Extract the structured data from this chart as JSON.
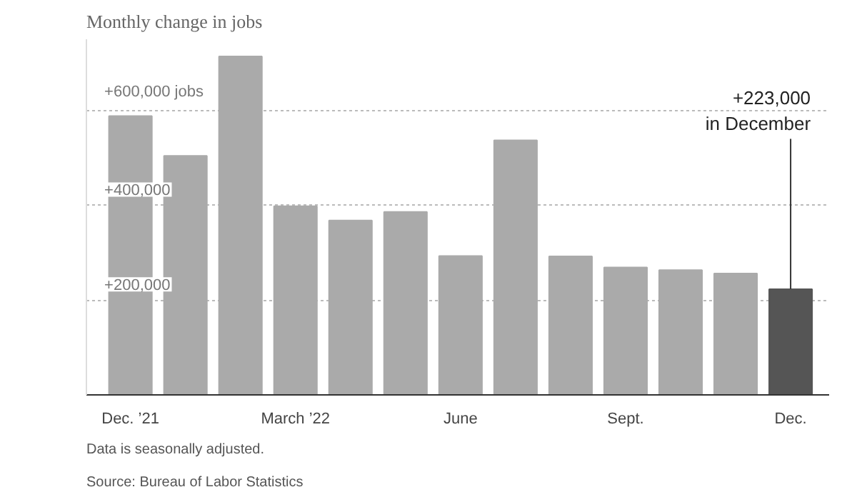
{
  "chart_data": {
    "type": "bar",
    "title": "Monthly change in jobs",
    "categories": [
      "Dec. ’21",
      null,
      null,
      "March ’22",
      null,
      null,
      "June",
      null,
      null,
      "Sept.",
      null,
      null,
      "Dec."
    ],
    "values": [
      588000,
      504000,
      714000,
      398000,
      368000,
      386000,
      293000,
      537000,
      292000,
      269000,
      263000,
      256000,
      223000
    ],
    "colors": [
      "#aaaaaa",
      "#aaaaaa",
      "#aaaaaa",
      "#aaaaaa",
      "#aaaaaa",
      "#aaaaaa",
      "#aaaaaa",
      "#aaaaaa",
      "#aaaaaa",
      "#aaaaaa",
      "#aaaaaa",
      "#aaaaaa",
      "#555555"
    ],
    "ylim": [
      0,
      750000
    ],
    "yticks": [
      {
        "value": 200000,
        "label": "+200,000"
      },
      {
        "value": 400000,
        "label": "+400,000"
      },
      {
        "value": 600000,
        "label": "+600,000 jobs"
      }
    ],
    "grid": "y",
    "annotations": [
      {
        "text": "+223,000\nin December",
        "x": "Dec.",
        "y": 223000
      },
      "Data is seasonally adjusted.",
      "Source: Bureau of Labor Statistics"
    ]
  }
}
